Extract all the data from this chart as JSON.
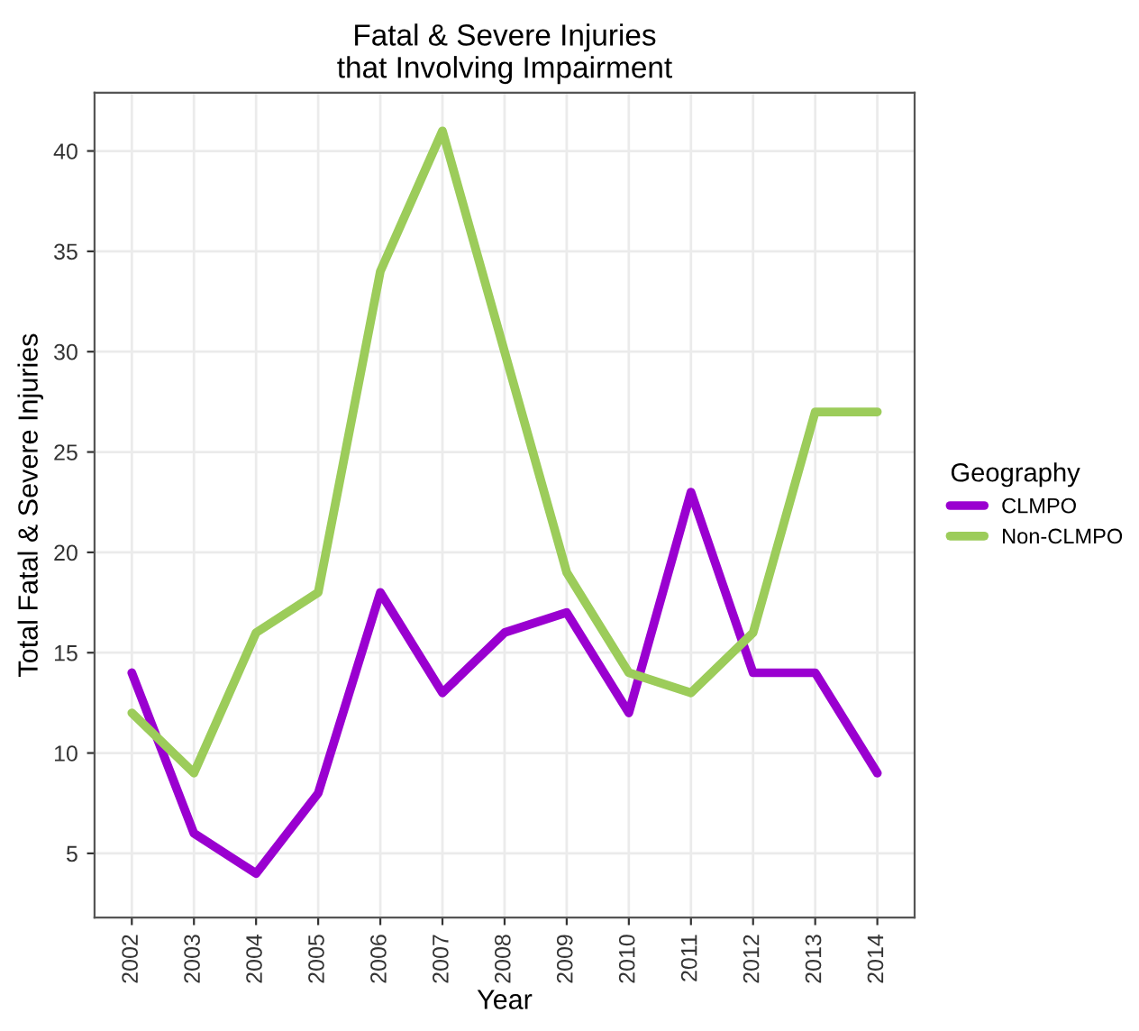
{
  "chart_data": {
    "type": "line",
    "title": "Fatal & Severe Injuries\nthat Involving Impairment",
    "xlabel": "Year",
    "ylabel": "Total Fatal & Severe Injuries",
    "legend_title": "Geography",
    "x": [
      2002,
      2003,
      2004,
      2005,
      2006,
      2007,
      2008,
      2009,
      2010,
      2011,
      2012,
      2013,
      2014
    ],
    "series": [
      {
        "name": "CLMPO",
        "color": "#9a00d0",
        "values": [
          14,
          6,
          4,
          8,
          18,
          13,
          16,
          17,
          12,
          23,
          14,
          14,
          9
        ]
      },
      {
        "name": "Non-CLMPO",
        "color": "#9ccc5a",
        "values": [
          12,
          9,
          16,
          18,
          34,
          41,
          30,
          19,
          14,
          13,
          16,
          27,
          27
        ]
      }
    ],
    "xlim": [
      2001.4,
      2014.6
    ],
    "xticks": [
      2002,
      2003,
      2004,
      2005,
      2006,
      2007,
      2008,
      2009,
      2010,
      2011,
      2012,
      2013,
      2014
    ],
    "ylim": [
      1.8,
      42.9
    ],
    "yticks": [
      5,
      10,
      15,
      20,
      25,
      30,
      35,
      40
    ],
    "grid": true,
    "legend": "right",
    "line_style": "solid",
    "marker": "none"
  }
}
